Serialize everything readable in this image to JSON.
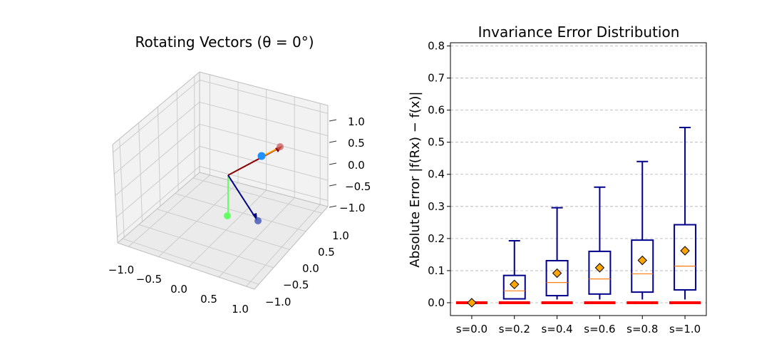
{
  "left_panel": {
    "title": "Rotating Vectors (θ = 0°)",
    "z_ticks": [
      "1.0",
      "0.5",
      "0.0",
      "−0.5",
      "−1.0"
    ],
    "x_ticks": [
      "−1.0",
      "−0.5",
      "0.0",
      "0.5",
      "1.0"
    ],
    "y_ticks": [
      "1.0",
      "0.5",
      "0.0",
      "−0.5",
      "−1.0"
    ],
    "colors": {
      "pane": "#f2f2f2",
      "grid": "#cccccc",
      "vec_red": "#8b0000",
      "vec_orange": "#ffa500",
      "vec_green": "#66ff66",
      "vec_blue": "#000080",
      "point_blue": "#1e90ff",
      "point_red": "#cd5c5c",
      "point_green": "#66ff66",
      "point_navy": "#3f51b5"
    }
  },
  "chart_data": {
    "type": "box",
    "title": "Invariance Error Distribution",
    "ylabel": "Absolute Error |f(Rx) − f(x)|",
    "xlabel": "",
    "categories": [
      "s=0.0",
      "s=0.2",
      "s=0.4",
      "s=0.6",
      "s=0.8",
      "s=1.0"
    ],
    "ylim": [
      -0.04,
      0.81
    ],
    "yticks": [
      0.0,
      0.1,
      0.2,
      0.3,
      0.4,
      0.5,
      0.6,
      0.7,
      0.8
    ],
    "grid": "y-dashed",
    "boxes": [
      {
        "whisker_low": 0.0,
        "q1": 0.0,
        "median": 0.0,
        "q3": 0.0,
        "whisker_high": 0.0,
        "mean": 0.0
      },
      {
        "whisker_low": 0.01,
        "q1": 0.012,
        "median": 0.037,
        "q3": 0.085,
        "whisker_high": 0.193,
        "mean": 0.057
      },
      {
        "whisker_low": 0.01,
        "q1": 0.022,
        "median": 0.063,
        "q3": 0.131,
        "whisker_high": 0.296,
        "mean": 0.092
      },
      {
        "whisker_low": 0.01,
        "q1": 0.027,
        "median": 0.074,
        "q3": 0.16,
        "whisker_high": 0.36,
        "mean": 0.109
      },
      {
        "whisker_low": 0.01,
        "q1": 0.033,
        "median": 0.09,
        "q3": 0.195,
        "whisker_high": 0.44,
        "mean": 0.132
      },
      {
        "whisker_low": 0.01,
        "q1": 0.04,
        "median": 0.114,
        "q3": 0.243,
        "whisker_high": 0.546,
        "mean": 0.162
      }
    ],
    "baseline_value": 0.0,
    "colors": {
      "box": "#00008b",
      "median": "#ff7f0e",
      "mean_marker": "#ffa500",
      "baseline": "#ff0000",
      "grid": "#b0b0b0"
    }
  }
}
